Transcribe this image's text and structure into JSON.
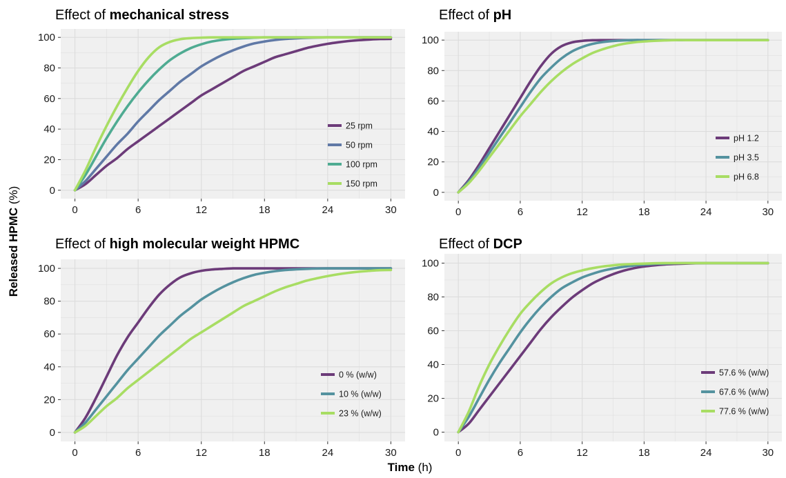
{
  "figure": {
    "ylabel_bold": "Released HPMC",
    "ylabel_unit": " (%)",
    "xlabel_bold": "Time",
    "xlabel_unit": " (h)"
  },
  "colors": {
    "panel_background": "#f0f0f0",
    "grid": "#dcdcdc",
    "purple": "#6c3b79",
    "blue_slate": "#6079a6",
    "teal": "#54929f",
    "teal_green": "#4fab92",
    "light_green": "#a8dd63"
  },
  "chart_data": [
    {
      "type": "line",
      "title_prefix": "Effect of ",
      "title_bold": "mechanical stress",
      "xlabel": "",
      "ylabel": "",
      "xlim": [
        0,
        30
      ],
      "ylim": [
        0,
        100
      ],
      "xticks": [
        0,
        6,
        12,
        18,
        24,
        30
      ],
      "yticks": [
        0,
        20,
        40,
        60,
        80,
        100
      ],
      "grid": true,
      "legend_position": "bottom-right",
      "x": [
        0,
        1,
        2,
        3,
        4,
        5,
        6,
        7,
        8,
        9,
        10,
        11,
        12,
        13,
        14,
        15,
        16,
        17,
        18,
        19,
        20,
        21,
        22,
        23,
        24,
        25,
        26,
        27,
        28,
        29,
        30
      ],
      "series": [
        {
          "name": "25 rpm",
          "color": "#6c3b79",
          "values": [
            0,
            4,
            10,
            16,
            21,
            27,
            32,
            37,
            42,
            47,
            52,
            57,
            62,
            66,
            70,
            74,
            78,
            81,
            84,
            87,
            89,
            91,
            93,
            94.5,
            95.8,
            96.8,
            97.6,
            98.2,
            98.6,
            98.9,
            99
          ]
        },
        {
          "name": "50 rpm",
          "color": "#6079a6",
          "values": [
            0,
            6,
            14,
            22,
            30,
            37,
            45,
            52,
            59,
            65,
            71,
            76,
            81,
            85,
            88.5,
            91.5,
            94,
            96,
            97.3,
            98.3,
            99,
            99.4,
            99.7,
            99.9,
            100,
            100,
            100,
            100,
            100,
            100,
            100
          ]
        },
        {
          "name": "100 rpm",
          "color": "#4fab92",
          "values": [
            0,
            10,
            22,
            34,
            45,
            55,
            64,
            72,
            79,
            85,
            89.5,
            93,
            95.5,
            97.3,
            98.4,
            99.1,
            99.5,
            99.8,
            100,
            100,
            100,
            100,
            100,
            100,
            100,
            100,
            100,
            100,
            100,
            100,
            100
          ]
        },
        {
          "name": "150 rpm",
          "color": "#a8dd63",
          "values": [
            0,
            13,
            28,
            42,
            55,
            67,
            78,
            87,
            93.5,
            97,
            98.8,
            99.5,
            99.8,
            100,
            100,
            100,
            100,
            100,
            100,
            100,
            100,
            100,
            100,
            100,
            100,
            100,
            100,
            100,
            100,
            100,
            100
          ]
        }
      ]
    },
    {
      "type": "line",
      "title_prefix": "Effect of ",
      "title_bold": "pH",
      "xlabel": "",
      "ylabel": "",
      "xlim": [
        0,
        30
      ],
      "ylim": [
        0,
        100
      ],
      "xticks": [
        0,
        6,
        12,
        18,
        24,
        30
      ],
      "yticks": [
        0,
        20,
        40,
        60,
        80,
        100
      ],
      "grid": true,
      "legend_position": "bottom-right",
      "x": [
        0,
        1,
        2,
        3,
        4,
        5,
        6,
        7,
        8,
        9,
        10,
        11,
        12,
        13,
        14,
        15,
        16,
        17,
        18,
        19,
        20,
        21,
        22,
        23,
        24,
        25,
        26,
        27,
        28,
        29,
        30
      ],
      "series": [
        {
          "name": "pH 1.2",
          "color": "#6c3b79",
          "values": [
            0,
            8,
            18,
            29,
            40,
            51,
            62,
            73,
            83,
            91,
            96,
            98.5,
            99.5,
            99.9,
            100,
            100,
            100,
            100,
            100,
            100,
            100,
            100,
            100,
            100,
            100,
            100,
            100,
            100,
            100,
            100,
            100
          ]
        },
        {
          "name": "pH 3.5",
          "color": "#54929f",
          "values": [
            0,
            7,
            16,
            26,
            36,
            46,
            56,
            66,
            75,
            82,
            88,
            92.5,
            95.5,
            97.5,
            98.7,
            99.4,
            99.8,
            100,
            100,
            100,
            100,
            100,
            100,
            100,
            100,
            100,
            100,
            100,
            100,
            100,
            100
          ]
        },
        {
          "name": "pH 6.8",
          "color": "#a8dd63",
          "values": [
            0,
            6,
            14,
            23,
            32,
            41,
            50,
            58,
            66,
            73,
            79,
            84,
            88,
            91.5,
            94,
            96,
            97.5,
            98.5,
            99.1,
            99.5,
            99.8,
            100,
            100,
            100,
            100,
            100,
            100,
            100,
            100,
            100,
            100
          ]
        }
      ]
    },
    {
      "type": "line",
      "title_prefix": "Effect of ",
      "title_bold": "high molecular weight HPMC",
      "xlabel": "",
      "ylabel": "",
      "xlim": [
        0,
        30
      ],
      "ylim": [
        0,
        100
      ],
      "xticks": [
        0,
        6,
        12,
        18,
        24,
        30
      ],
      "yticks": [
        0,
        20,
        40,
        60,
        80,
        100
      ],
      "grid": true,
      "legend_position": "bottom-right",
      "x": [
        0,
        1,
        2,
        3,
        4,
        5,
        6,
        7,
        8,
        9,
        10,
        11,
        12,
        13,
        14,
        15,
        16,
        17,
        18,
        19,
        20,
        21,
        22,
        23,
        24,
        25,
        26,
        27,
        28,
        29,
        30
      ],
      "series": [
        {
          "name": "0 % (w/w)",
          "color": "#6c3b79",
          "values": [
            0,
            9,
            21,
            34,
            47,
            58,
            67,
            76,
            84,
            90,
            94.5,
            97,
            98.5,
            99.3,
            99.7,
            100,
            100,
            100,
            100,
            100,
            100,
            100,
            100,
            100,
            100,
            100,
            100,
            100,
            100,
            100,
            100
          ]
        },
        {
          "name": "10 % (w/w)",
          "color": "#54929f",
          "values": [
            0,
            6,
            14,
            22,
            30,
            38,
            45,
            52,
            59,
            65,
            71,
            76,
            81,
            85,
            88.5,
            91.5,
            94,
            96,
            97.3,
            98.3,
            99,
            99.4,
            99.7,
            99.9,
            100,
            100,
            100,
            100,
            100,
            100,
            100
          ]
        },
        {
          "name": "23 % (w/w)",
          "color": "#a8dd63",
          "values": [
            0,
            4,
            10,
            16,
            21,
            27,
            32,
            37,
            42,
            47,
            52,
            57,
            61,
            65,
            69,
            73,
            77,
            80,
            83,
            86,
            88.5,
            90.5,
            92.5,
            94,
            95.3,
            96.4,
            97.3,
            98,
            98.5,
            98.9,
            99
          ]
        }
      ]
    },
    {
      "type": "line",
      "title_prefix": "Effect of ",
      "title_bold": "DCP",
      "xlabel": "",
      "ylabel": "",
      "xlim": [
        0,
        30
      ],
      "ylim": [
        0,
        100
      ],
      "xticks": [
        0,
        6,
        12,
        18,
        24,
        30
      ],
      "yticks": [
        0,
        20,
        40,
        60,
        80,
        100
      ],
      "grid": true,
      "legend_position": "bottom-right",
      "x": [
        0,
        1,
        2,
        3,
        4,
        5,
        6,
        7,
        8,
        9,
        10,
        11,
        12,
        13,
        14,
        15,
        16,
        17,
        18,
        19,
        20,
        21,
        22,
        23,
        24,
        25,
        26,
        27,
        28,
        29,
        30
      ],
      "series": [
        {
          "name": "57.6 % (w/w)",
          "color": "#6c3b79",
          "values": [
            0,
            5,
            13,
            21,
            29,
            37,
            45,
            53,
            61,
            68,
            74,
            79.5,
            84,
            88,
            91,
            93.5,
            95.5,
            97,
            98,
            98.7,
            99.2,
            99.5,
            99.7,
            99.9,
            100,
            100,
            100,
            100,
            100,
            100,
            100
          ]
        },
        {
          "name": "67.6 % (w/w)",
          "color": "#54929f",
          "values": [
            0,
            9,
            20,
            31,
            41,
            50,
            59,
            67,
            74,
            80,
            85,
            88.5,
            91.5,
            93.7,
            95.5,
            96.8,
            97.8,
            98.6,
            99.1,
            99.5,
            99.7,
            99.9,
            100,
            100,
            100,
            100,
            100,
            100,
            100,
            100,
            100
          ]
        },
        {
          "name": "77.6 % (w/w)",
          "color": "#a8dd63",
          "values": [
            0,
            12,
            27,
            40,
            51,
            61,
            70,
            77,
            83,
            88,
            91.5,
            94,
            95.7,
            97,
            98,
            98.7,
            99.2,
            99.5,
            99.7,
            99.9,
            100,
            100,
            100,
            100,
            100,
            100,
            100,
            100,
            100,
            100,
            100
          ]
        }
      ]
    }
  ]
}
